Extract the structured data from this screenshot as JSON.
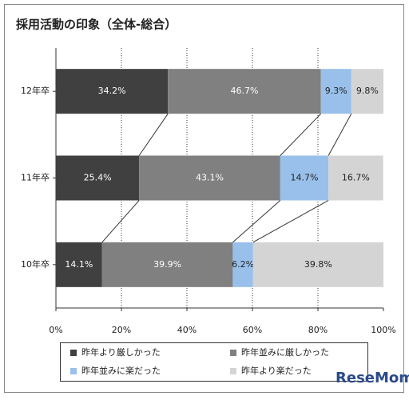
{
  "chart_data": {
    "type": "stacked-barh",
    "title": "採用活動の印象（全体-総合）",
    "categories": [
      "12年卒",
      "11年卒",
      "10年卒"
    ],
    "series": [
      {
        "name": "昨年より厳しかった",
        "color": "#404040",
        "values": [
          34.2,
          25.4,
          14.1
        ],
        "value_labels": [
          "34.2%",
          "25.4%",
          "14.1%"
        ]
      },
      {
        "name": "昨年並みに厳しかった",
        "color": "#808080",
        "values": [
          46.7,
          43.1,
          39.9
        ],
        "value_labels": [
          "46.7%",
          "43.1%",
          "39.9%"
        ]
      },
      {
        "name": "昨年並みに楽だった",
        "color": "#99c0ea",
        "values": [
          9.3,
          14.7,
          6.2
        ],
        "value_labels": [
          "9.3%",
          "14.7%",
          "6.2%"
        ]
      },
      {
        "name": "昨年より楽だった",
        "color": "#d4d4d4",
        "values": [
          9.8,
          16.7,
          39.8
        ],
        "value_labels": [
          "9.8%",
          "16.7%",
          "39.8%"
        ]
      }
    ],
    "xlim": [
      0,
      100
    ],
    "xticks": [
      {
        "value": 0,
        "label": "0%"
      },
      {
        "value": 20,
        "label": "20%"
      },
      {
        "value": 40,
        "label": "40%"
      },
      {
        "value": 60,
        "label": "60%"
      },
      {
        "value": 80,
        "label": "80%"
      },
      {
        "value": 100,
        "label": "100%"
      }
    ],
    "grid": true,
    "legend": "bottom",
    "watermark": "ReseMom"
  }
}
